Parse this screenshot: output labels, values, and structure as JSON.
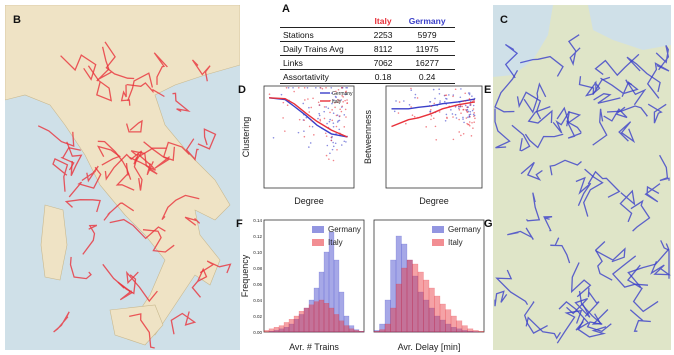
{
  "panel_letters": {
    "a": "A",
    "b": "B",
    "c": "C",
    "d": "D",
    "e": "E",
    "f": "F",
    "g": "G"
  },
  "colors": {
    "italy": "#e8313a",
    "germany": "#3a3fc9",
    "map_land": "#efe3c5",
    "map_sea": "#cfe0e8",
    "germany_map_bg": "#dfe5c8"
  },
  "table": {
    "headers": [
      "",
      "Italy",
      "Germany"
    ],
    "rows": [
      {
        "label": "Stations",
        "italy": "2253",
        "germany": "5979"
      },
      {
        "label": "Daily Trains Avg",
        "italy": "8112",
        "germany": "11975"
      },
      {
        "label": "Links",
        "italy": "7062",
        "germany": "16277"
      },
      {
        "label": "Assortativity",
        "italy": "0.18",
        "germany": "0.24"
      }
    ]
  },
  "chart_data": [
    {
      "panel": "D",
      "type": "scatter",
      "xlabel": "Degree",
      "ylabel": "Clustering",
      "xscale": "log",
      "yscale": "log",
      "legend": [
        "Germany",
        "Italy"
      ],
      "series": [
        {
          "name": "Germany",
          "x": [
            1,
            2,
            3,
            5,
            8,
            15,
            30
          ],
          "y": [
            1,
            0.9,
            0.6,
            0.35,
            0.2,
            0.12,
            0.1
          ]
        },
        {
          "name": "Italy",
          "x": [
            1,
            2,
            3,
            5,
            8,
            15,
            30
          ],
          "y": [
            1,
            0.95,
            0.7,
            0.4,
            0.25,
            0.15,
            0.1
          ]
        }
      ]
    },
    {
      "panel": "E",
      "type": "scatter",
      "xlabel": "Degree",
      "ylabel": "Betweenness",
      "xscale": "log",
      "yscale": "log",
      "series": [
        {
          "name": "Germany",
          "x": [
            1,
            2,
            3,
            5,
            8,
            15,
            30
          ],
          "y": [
            0.3,
            0.3,
            0.35,
            0.4,
            0.5,
            0.6,
            0.8
          ]
        },
        {
          "name": "Italy",
          "x": [
            1,
            2,
            3,
            5,
            8,
            15,
            30
          ],
          "y": [
            0.05,
            0.1,
            0.12,
            0.18,
            0.3,
            0.45,
            0.6
          ]
        }
      ]
    },
    {
      "panel": "F",
      "type": "bar",
      "xlabel": "Avr. # Trains",
      "ylabel": "Frequency",
      "y_ticks": [
        "0.14",
        "0.12",
        "0.10",
        "0.08",
        "0.06",
        "0.04",
        "0.02",
        "0.00"
      ],
      "legend": [
        "Germany",
        "Italy"
      ],
      "series": [
        {
          "name": "Germany",
          "values": [
            0,
            0.001,
            0.002,
            0.004,
            0.006,
            0.01,
            0.016,
            0.022,
            0.03,
            0.04,
            0.055,
            0.075,
            0.1,
            0.125,
            0.09,
            0.05,
            0.02,
            0.008,
            0.003,
            0.001
          ]
        },
        {
          "name": "Italy",
          "values": [
            0.002,
            0.004,
            0.006,
            0.008,
            0.012,
            0.016,
            0.02,
            0.026,
            0.03,
            0.034,
            0.038,
            0.04,
            0.036,
            0.03,
            0.022,
            0.014,
            0.008,
            0.004,
            0.002,
            0.001
          ]
        }
      ]
    },
    {
      "panel": "G",
      "type": "bar",
      "xlabel": "Avr. Delay [min]",
      "legend": [
        "Germany",
        "Italy"
      ],
      "series": [
        {
          "name": "Germany",
          "values": [
            0.002,
            0.01,
            0.04,
            0.09,
            0.12,
            0.11,
            0.09,
            0.07,
            0.05,
            0.04,
            0.03,
            0.02,
            0.015,
            0.01,
            0.006,
            0.004,
            0.002,
            0.001,
            0.0005,
            0
          ]
        },
        {
          "name": "Italy",
          "values": [
            0.001,
            0.003,
            0.01,
            0.03,
            0.06,
            0.08,
            0.09,
            0.085,
            0.075,
            0.065,
            0.055,
            0.045,
            0.035,
            0.028,
            0.02,
            0.014,
            0.008,
            0.004,
            0.002,
            0.001
          ]
        }
      ]
    }
  ]
}
